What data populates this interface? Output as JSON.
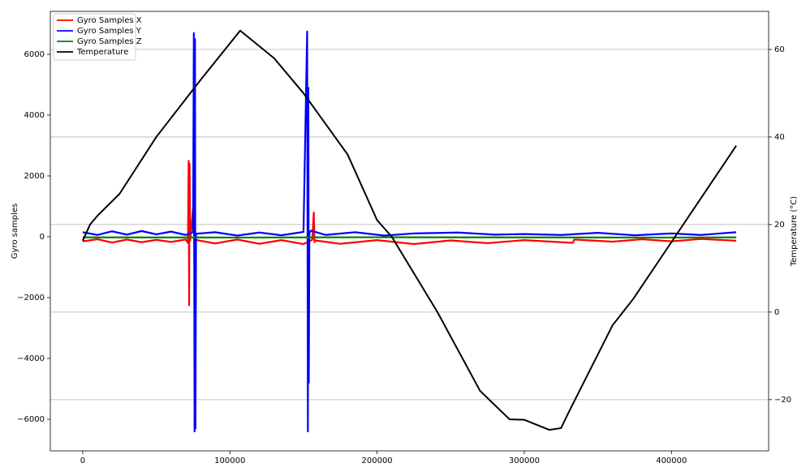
{
  "chart_data": {
    "type": "line",
    "xlim": [
      -22000,
      466000
    ],
    "xticks": [
      0,
      100000,
      200000,
      300000,
      400000
    ],
    "ylim": [
      -7040,
      7413
    ],
    "yticks": [
      {
        "value": -6000,
        "label": "−6000"
      },
      {
        "value": -4000,
        "label": "−4000"
      },
      {
        "value": -2000,
        "label": "−2000"
      },
      0,
      2000,
      4000,
      6000
    ],
    "y2lim": [
      -31.7,
      68.7
    ],
    "y2ticks": [
      {
        "value": -20,
        "label": "−20"
      },
      0,
      20,
      40,
      60
    ],
    "ylabel": "Gyro samples",
    "y2label": "Temperature (°C)",
    "grid": "y2",
    "legend": "upper left",
    "series": [
      {
        "name": "Gyro Samples X",
        "color": "#ff0000",
        "x": [
          0,
          10000,
          20000,
          30000,
          40000,
          50000,
          60000,
          70000,
          71500,
          72000,
          72300,
          72600,
          73000,
          75500,
          76000,
          76500,
          90000,
          105000,
          120000,
          135000,
          150000,
          156000,
          157000,
          157500,
          158000,
          175000,
          200000,
          225000,
          250000,
          275000,
          300000,
          333000,
          334000,
          360000,
          380000,
          400000,
          420000,
          444000
        ],
        "values": [
          -150,
          -80,
          -190,
          -90,
          -180,
          -100,
          -170,
          -90,
          -200,
          2500,
          -2250,
          2400,
          -120,
          1200,
          -1300,
          -100,
          -220,
          -90,
          -230,
          -110,
          -240,
          -100,
          800,
          -180,
          -120,
          -230,
          -110,
          -240,
          -120,
          -210,
          -110,
          -200,
          -90,
          -160,
          -80,
          -150,
          -70,
          -130
        ]
      },
      {
        "name": "Gyro Samples Y",
        "color": "#0000ff",
        "x": [
          0,
          10000,
          20000,
          30000,
          40000,
          50000,
          60000,
          70000,
          75000,
          75500,
          76000,
          76300,
          76600,
          77000,
          90000,
          105000,
          120000,
          135000,
          150000,
          152500,
          153000,
          153300,
          153600,
          154000,
          155000,
          165000,
          185000,
          205000,
          225000,
          255000,
          280000,
          300000,
          325000,
          350000,
          375000,
          400000,
          420000,
          444000
        ],
        "values": [
          150,
          60,
          180,
          70,
          190,
          80,
          170,
          60,
          150,
          6700,
          -6400,
          6500,
          -6300,
          100,
          150,
          40,
          140,
          50,
          160,
          6750,
          -6400,
          4900,
          -4800,
          120,
          200,
          60,
          150,
          40,
          110,
          140,
          70,
          90,
          60,
          130,
          50,
          110,
          60,
          150
        ]
      },
      {
        "name": "Gyro Samples Z",
        "color": "#008000",
        "x": [
          0,
          100000,
          200000,
          300000,
          400000,
          444000
        ],
        "values": [
          -20,
          -25,
          -15,
          -20,
          -25,
          -20
        ]
      },
      {
        "name": "Temperature",
        "color": "#000000",
        "axis": "y2",
        "x": [
          0,
          5000,
          10000,
          25000,
          50000,
          80000,
          107000,
          130000,
          150000,
          180000,
          200000,
          210000,
          241000,
          270000,
          290000,
          300000,
          317000,
          325000,
          330000,
          360000,
          374000,
          400000,
          444000
        ],
        "values": [
          16.3,
          20,
          22,
          27,
          40,
          53,
          64.3,
          58,
          50,
          36,
          21,
          17.2,
          0,
          -18,
          -24.5,
          -24.6,
          -26.9,
          -26.5,
          -23,
          -3,
          3,
          16,
          38
        ]
      }
    ]
  }
}
